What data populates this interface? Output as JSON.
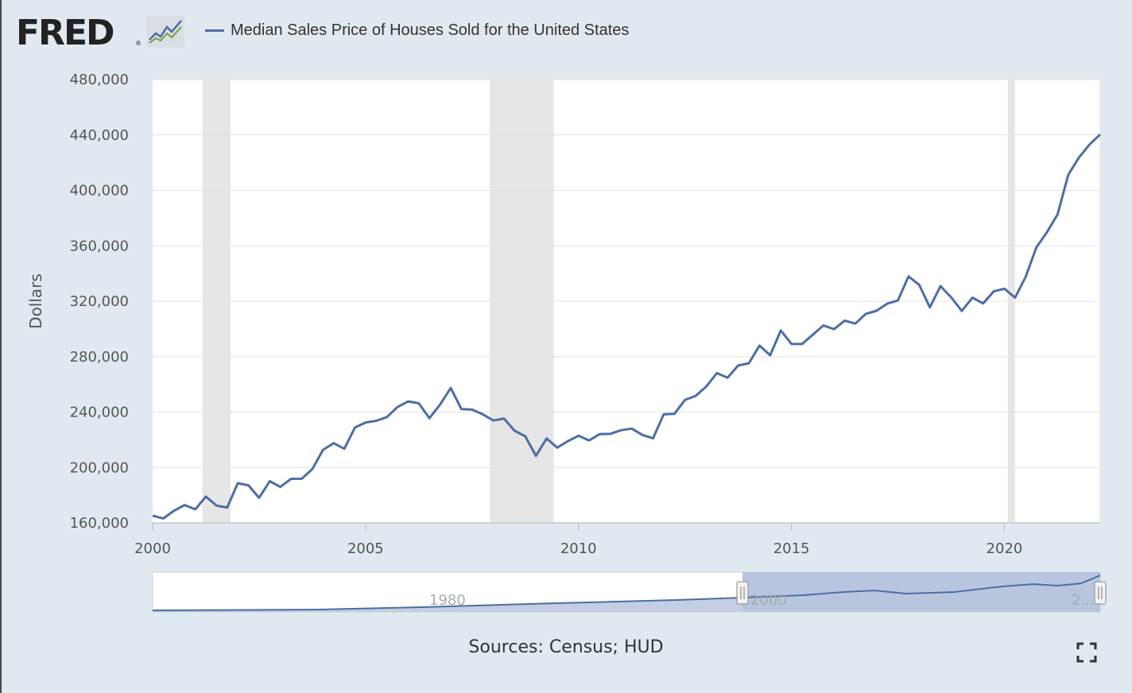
{
  "header": {
    "logo_text": "FRED",
    "logo_mark": "®",
    "logo_icon": "chart-line-icon",
    "legend_label": "Median Sales Price of Houses Sold for the United States",
    "series_color": "#4c6ea3"
  },
  "footer": {
    "sources": "Sources: Census; HUD",
    "fullscreen_icon": "fullscreen-icon"
  },
  "navigator": {
    "tick_labels": [
      "1980",
      "2000",
      "2..."
    ]
  },
  "chart_data": {
    "type": "line",
    "title": "",
    "xlabel": "",
    "ylabel": "Dollars",
    "xlim": [
      2000.0,
      2022.25
    ],
    "ylim": [
      160000,
      480000
    ],
    "y_ticks": [
      160000,
      200000,
      240000,
      280000,
      320000,
      360000,
      400000,
      440000,
      480000
    ],
    "y_tick_labels": [
      "160,000",
      "200,000",
      "240,000",
      "280,000",
      "320,000",
      "360,000",
      "400,000",
      "440,000",
      "480,000"
    ],
    "x_ticks": [
      2000,
      2005,
      2010,
      2015,
      2020
    ],
    "x_tick_labels": [
      "2000",
      "2005",
      "2010",
      "2015",
      "2020"
    ],
    "grid": true,
    "recessions": [
      [
        2001.17,
        2001.83
      ],
      [
        2007.92,
        2009.42
      ],
      [
        2020.08,
        2020.25
      ]
    ],
    "series": [
      {
        "name": "Median Sales Price of Houses Sold for the United States",
        "color": "#4c6ea3",
        "x": [
          2000.0,
          2000.25,
          2000.5,
          2000.75,
          2001.0,
          2001.25,
          2001.5,
          2001.75,
          2002.0,
          2002.25,
          2002.5,
          2002.75,
          2003.0,
          2003.25,
          2003.5,
          2003.75,
          2004.0,
          2004.25,
          2004.5,
          2004.75,
          2005.0,
          2005.25,
          2005.5,
          2005.75,
          2006.0,
          2006.25,
          2006.5,
          2006.75,
          2007.0,
          2007.25,
          2007.5,
          2007.75,
          2008.0,
          2008.25,
          2008.5,
          2008.75,
          2009.0,
          2009.25,
          2009.5,
          2009.75,
          2010.0,
          2010.25,
          2010.5,
          2010.75,
          2011.0,
          2011.25,
          2011.5,
          2011.75,
          2012.0,
          2012.25,
          2012.5,
          2012.75,
          2013.0,
          2013.25,
          2013.5,
          2013.75,
          2014.0,
          2014.25,
          2014.5,
          2014.75,
          2015.0,
          2015.25,
          2015.5,
          2015.75,
          2016.0,
          2016.25,
          2016.5,
          2016.75,
          2017.0,
          2017.25,
          2017.5,
          2017.75,
          2018.0,
          2018.25,
          2018.5,
          2018.75,
          2019.0,
          2019.25,
          2019.5,
          2019.75,
          2020.0,
          2020.25,
          2020.5,
          2020.75,
          2021.0,
          2021.25,
          2021.5,
          2021.75,
          2022.0,
          2022.25
        ],
        "values": [
          165300,
          163200,
          168800,
          172900,
          169800,
          179000,
          172500,
          171100,
          188700,
          187200,
          178100,
          190100,
          186000,
          191800,
          191900,
          198800,
          212700,
          217600,
          213500,
          228800,
          232500,
          233700,
          236400,
          243600,
          247700,
          246300,
          235600,
          245400,
          257400,
          242200,
          241800,
          238400,
          233900,
          235300,
          226500,
          222500,
          208400,
          220900,
          214300,
          219000,
          222900,
          219500,
          224100,
          224300,
          226900,
          228100,
          223500,
          221100,
          238400,
          238700,
          248800,
          251700,
          258400,
          268100,
          264800,
          273600,
          275200,
          288000,
          281000,
          298900,
          289200,
          289100,
          295800,
          302500,
          299800,
          306000,
          303800,
          310900,
          313100,
          318200,
          320500,
          337900,
          331800,
          315600,
          330900,
          322800,
          313000,
          322500,
          318400,
          327100,
          329000,
          322600,
          337500,
          358700,
          369800,
          382600,
          411200,
          423600,
          433100,
          440300
        ]
      }
    ]
  }
}
